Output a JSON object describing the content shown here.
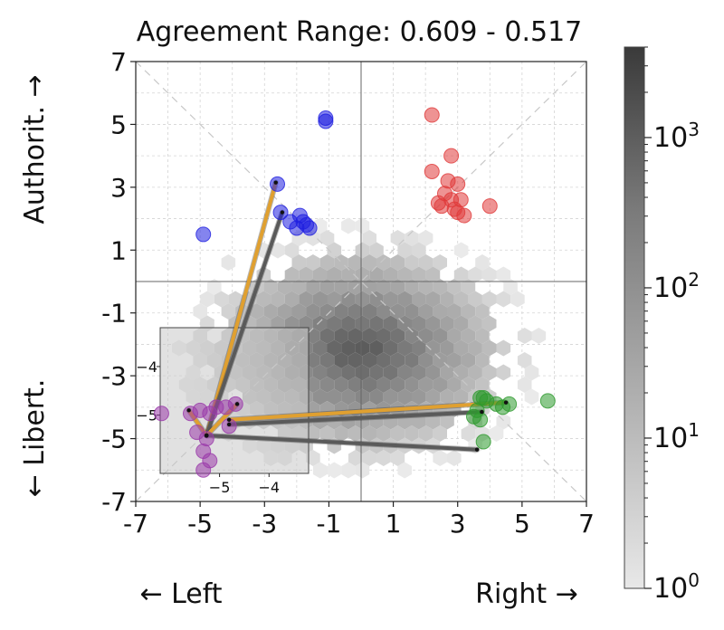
{
  "chart_data": {
    "type": "scatter",
    "title": "Agreement Range: 0.609 - 0.517",
    "xlabel_left": "← Left",
    "xlabel_right": "Right →",
    "ylabel_top": "Authorit. →",
    "ylabel_bottom": "← Libert.",
    "xlim": [
      -7,
      7
    ],
    "ylim": [
      -7,
      7
    ],
    "x_ticks": [
      -7,
      -5,
      -3,
      -1,
      1,
      3,
      5,
      7
    ],
    "y_ticks": [
      -7,
      -5,
      -3,
      -1,
      1,
      3,
      5,
      7
    ],
    "x_tick_labels": [
      "-7",
      "-5",
      "-3",
      "-1",
      "1",
      "3",
      "5",
      "7"
    ],
    "y_tick_labels": [
      "-7",
      "-5",
      "-3",
      "-1",
      "1",
      "3",
      "5",
      "7"
    ],
    "grid": true,
    "background_hexbin": {
      "description_center": [
        0,
        -2.2
      ],
      "color_scale": "log",
      "colorbar_range": [
        1,
        4000
      ],
      "colorbar_tick_labels": [
        "10^0",
        "10^1",
        "10^2",
        "10^3"
      ]
    },
    "colors": {
      "blue": "#1f1fe0",
      "red": "#e03a3a",
      "green": "#2e9a2e",
      "purple": "#9a3aaa",
      "orange_line": "#e0a030",
      "gray_line": "#5a5a5a"
    },
    "clusters": [
      {
        "color": "blue",
        "points": [
          [
            -1.1,
            5.2
          ],
          [
            -1.1,
            5.1
          ],
          [
            -2.6,
            3.1
          ],
          [
            -2.5,
            2.2
          ],
          [
            -2.2,
            1.9
          ],
          [
            -1.9,
            2.1
          ],
          [
            -1.7,
            1.8
          ],
          [
            -1.6,
            1.7
          ],
          [
            -2.0,
            1.7
          ],
          [
            -1.8,
            1.9
          ],
          [
            -4.9,
            1.5
          ]
        ]
      },
      {
        "color": "red",
        "points": [
          [
            2.2,
            5.3
          ],
          [
            2.8,
            4.0
          ],
          [
            2.2,
            3.5
          ],
          [
            2.7,
            3.2
          ],
          [
            3.0,
            3.1
          ],
          [
            2.6,
            2.8
          ],
          [
            2.8,
            2.6
          ],
          [
            3.1,
            2.6
          ],
          [
            2.5,
            2.4
          ],
          [
            3.0,
            2.2
          ],
          [
            2.9,
            2.3
          ],
          [
            3.2,
            2.1
          ],
          [
            2.4,
            2.5
          ],
          [
            4.0,
            2.4
          ]
        ]
      },
      {
        "color": "green",
        "points": [
          [
            3.7,
            -3.7
          ],
          [
            3.8,
            -3.7
          ],
          [
            3.9,
            -3.8
          ],
          [
            4.2,
            -3.9
          ],
          [
            4.4,
            -4.0
          ],
          [
            4.6,
            -3.9
          ],
          [
            3.6,
            -4.1
          ],
          [
            3.7,
            -4.4
          ],
          [
            5.8,
            -3.8
          ],
          [
            3.8,
            -5.1
          ],
          [
            3.5,
            -4.3
          ]
        ]
      },
      {
        "color": "purple",
        "points": [
          [
            -6.2,
            -4.2
          ],
          [
            -5.3,
            -4.2
          ],
          [
            -5.0,
            -4.1
          ],
          [
            -4.7,
            -4.2
          ],
          [
            -4.5,
            -4.0
          ],
          [
            -4.2,
            -4.0
          ],
          [
            -3.9,
            -3.9
          ],
          [
            -4.1,
            -4.6
          ],
          [
            -5.1,
            -4.8
          ],
          [
            -4.8,
            -5.0
          ],
          [
            -4.9,
            -5.4
          ],
          [
            -4.7,
            -5.7
          ],
          [
            -4.9,
            -6.0
          ]
        ]
      }
    ],
    "connector_lines": [
      {
        "color": "orange_line",
        "from": [
          -4.8,
          -4.9
        ],
        "to": [
          -2.65,
          3.15
        ]
      },
      {
        "color": "gray_line",
        "from": [
          -4.8,
          -4.9
        ],
        "to": [
          -2.45,
          2.2
        ]
      },
      {
        "color": "orange_line",
        "from": [
          -5.35,
          -4.1
        ],
        "to": [
          -4.8,
          -4.9
        ]
      },
      {
        "color": "orange_line",
        "from": [
          -4.1,
          -4.4
        ],
        "to": [
          4.5,
          -3.85
        ]
      },
      {
        "color": "orange_line",
        "from": [
          -4.8,
          -4.9
        ],
        "to": [
          -3.85,
          -3.9
        ]
      },
      {
        "color": "gray_line",
        "from": [
          -4.1,
          -4.55
        ],
        "to": [
          3.75,
          -4.15
        ]
      },
      {
        "color": "gray_line",
        "from": [
          -4.8,
          -4.9
        ],
        "to": [
          3.6,
          -5.35
        ]
      }
    ],
    "inset": {
      "xlim": [
        -6.2,
        -3.2
      ],
      "ylim": [
        -6.2,
        -3.2
      ],
      "x_tick_labels": [
        "−5",
        "−4"
      ],
      "x_ticks": [
        -5,
        -4
      ],
      "y_tick_labels": [
        "−4",
        "−5"
      ],
      "y_ticks": [
        -4,
        -5
      ]
    }
  }
}
